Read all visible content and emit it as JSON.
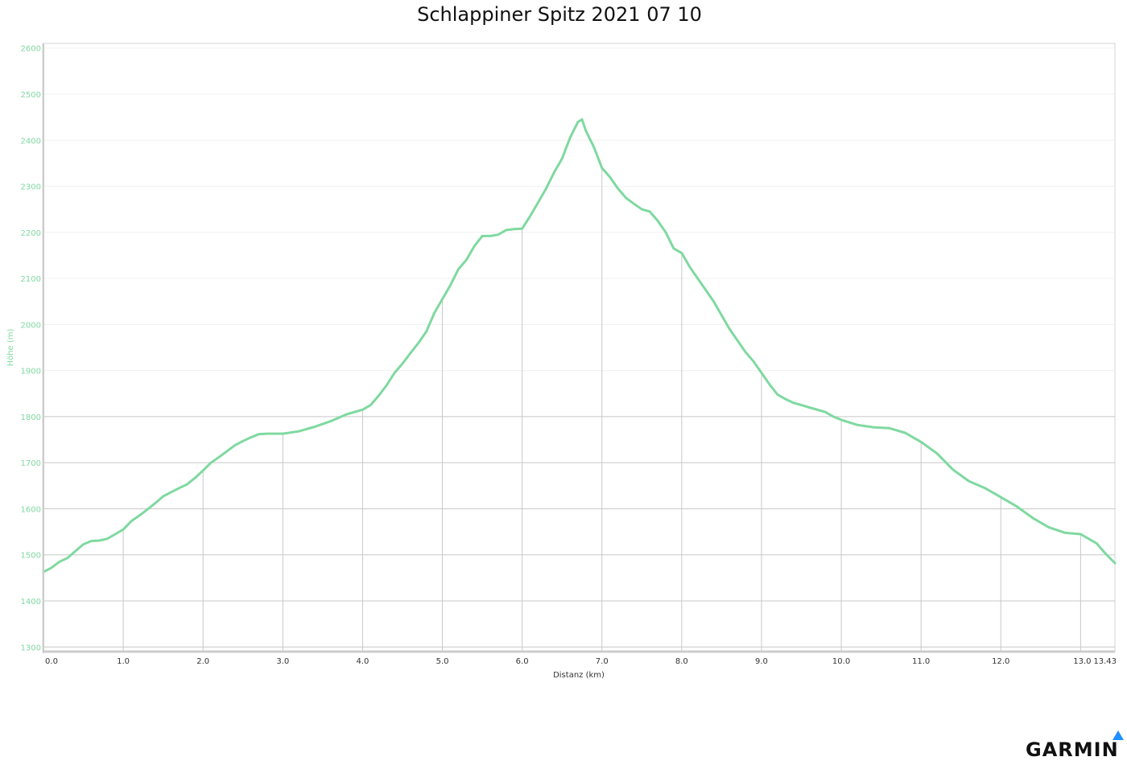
{
  "brand": {
    "name": "GARMIN"
  },
  "colors": {
    "line": "#7fd9a0",
    "axis_title_y": "#7fd9a0",
    "tick_y": "#7fd9a0",
    "grid": "#c8c8c8",
    "brand_accent": "#1e90ff"
  },
  "chart_data": {
    "type": "line",
    "title": "Schlappiner Spitz 2021 07 10",
    "xlabel": "Distanz (km)",
    "ylabel": "Höhe (m)",
    "xlim": [
      0,
      13.43
    ],
    "ylim": [
      1290,
      2610
    ],
    "xticks": [
      "0.0",
      "1.0",
      "2.0",
      "3.0",
      "4.0",
      "5.0",
      "6.0",
      "7.0",
      "8.0",
      "9.0",
      "10.0",
      "11.0",
      "12.0",
      "13.0",
      "13.43"
    ],
    "yticks": [
      "2600",
      "2500",
      "2400",
      "2300",
      "2200",
      "2100",
      "2000",
      "1900",
      "1800",
      "1700",
      "1600",
      "1500",
      "1400",
      "1300"
    ],
    "grid": true,
    "series": [
      {
        "x": [
          0,
          0.1,
          0.2,
          0.3,
          0.4,
          0.5,
          0.6,
          0.7,
          0.8,
          0.9,
          1.0,
          1.1,
          1.2,
          1.3,
          1.4,
          1.5,
          1.6,
          1.7,
          1.8,
          1.9,
          2.0,
          2.1,
          2.2,
          2.3,
          2.4,
          2.5,
          2.6,
          2.7,
          2.8,
          2.9,
          3.0,
          3.2,
          3.4,
          3.6,
          3.8,
          4.0,
          4.1,
          4.2,
          4.3,
          4.4,
          4.5,
          4.6,
          4.7,
          4.8,
          4.9,
          5.0,
          5.1,
          5.2,
          5.3,
          5.4,
          5.5,
          5.6,
          5.7,
          5.8,
          5.9,
          6.0,
          6.1,
          6.2,
          6.3,
          6.4,
          6.5,
          6.6,
          6.7,
          6.75,
          6.8,
          6.9,
          7.0,
          7.1,
          7.2,
          7.3,
          7.4,
          7.5,
          7.6,
          7.7,
          7.8,
          7.9,
          8.0,
          8.1,
          8.2,
          8.3,
          8.4,
          8.5,
          8.6,
          8.7,
          8.8,
          8.9,
          9.0,
          9.1,
          9.2,
          9.3,
          9.4,
          9.5,
          9.6,
          9.7,
          9.8,
          9.9,
          10.0,
          10.2,
          10.4,
          10.6,
          10.8,
          11.0,
          11.2,
          11.4,
          11.6,
          11.8,
          12.0,
          12.2,
          12.4,
          12.6,
          12.8,
          13.0,
          13.2,
          13.3,
          13.43
        ],
        "y": [
          1463,
          1472,
          1485,
          1493,
          1508,
          1523,
          1530,
          1531,
          1535,
          1545,
          1555,
          1573,
          1585,
          1598,
          1612,
          1627,
          1636,
          1645,
          1653,
          1667,
          1683,
          1700,
          1712,
          1725,
          1738,
          1747,
          1755,
          1762,
          1763,
          1763,
          1763,
          1768,
          1778,
          1790,
          1805,
          1815,
          1825,
          1845,
          1868,
          1895,
          1915,
          1938,
          1960,
          1985,
          2025,
          2055,
          2085,
          2120,
          2140,
          2170,
          2192,
          2192,
          2195,
          2205,
          2207,
          2208,
          2235,
          2265,
          2295,
          2330,
          2360,
          2405,
          2440,
          2445,
          2420,
          2385,
          2340,
          2320,
          2295,
          2275,
          2262,
          2250,
          2245,
          2225,
          2200,
          2165,
          2155,
          2125,
          2100,
          2075,
          2050,
          2020,
          1990,
          1965,
          1940,
          1920,
          1895,
          1870,
          1848,
          1838,
          1830,
          1825,
          1820,
          1815,
          1810,
          1800,
          1793,
          1782,
          1777,
          1775,
          1765,
          1745,
          1720,
          1685,
          1660,
          1645,
          1625,
          1605,
          1580,
          1560,
          1548,
          1545,
          1525,
          1505,
          1482
        ]
      }
    ]
  }
}
